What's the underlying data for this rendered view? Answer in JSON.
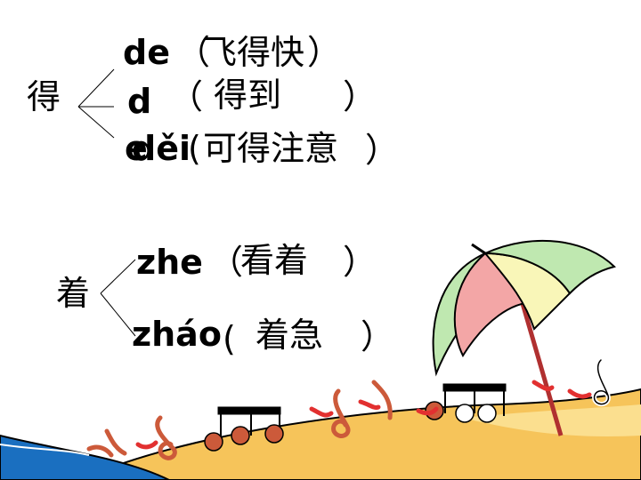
{
  "slide": {
    "group1": {
      "char": "得",
      "line1": {
        "pinyin": "de",
        "open": "（",
        "word": "飞得快",
        "close": "）"
      },
      "line2": {
        "pinyin": "d",
        "open": "（",
        "word": "得到",
        "close": "）"
      },
      "line2_overlap": "e",
      "line3": {
        "pinyin": "děi",
        "open": "(",
        "word": "可得注意",
        "close": "）"
      }
    },
    "group2": {
      "char": "着",
      "line1": {
        "pinyin": "zhe",
        "open": "（",
        "word": "看着",
        "close": "）"
      },
      "line2": {
        "pinyin": "zháo",
        "open": "(",
        "word": "着急",
        "close": "）"
      }
    }
  },
  "illustration": {
    "sand_color": "#f6c45a",
    "sea_color": "#1a6fc0",
    "umbrella_colors": [
      "#f3a6a6",
      "#f9f6b8",
      "#bfe8b0"
    ],
    "icons": [
      "treble-clef-icon",
      "music-note-icon",
      "beamed-notes-icon"
    ]
  }
}
